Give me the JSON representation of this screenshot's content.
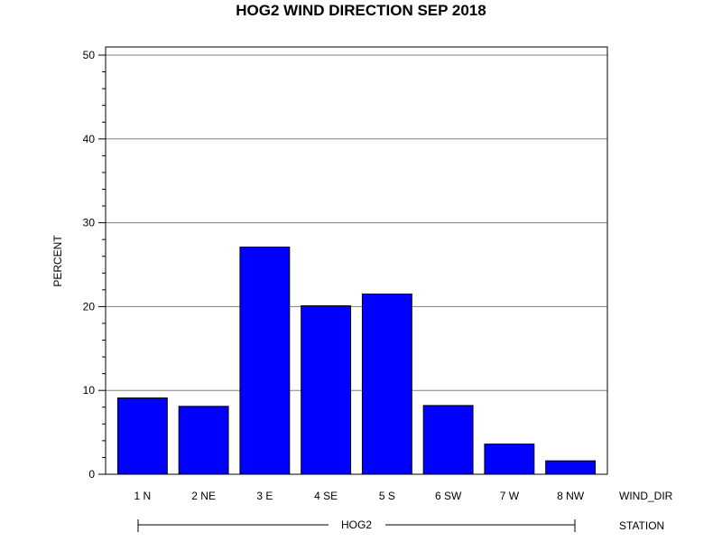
{
  "chart_data": {
    "type": "bar",
    "title": "HOG2 WIND DIRECTION SEP 2018",
    "ylabel": "PERCENT",
    "xlabel": "WIND_DIR",
    "group_label": "STATION",
    "group_value": "HOG2",
    "categories": [
      "1 N",
      "2 NE",
      "3 E",
      "4 SE",
      "5 S",
      "6 SW",
      "7 W",
      "8 NW"
    ],
    "values": [
      9.1,
      8.1,
      27.1,
      20.1,
      21.5,
      8.2,
      3.6,
      1.6
    ],
    "ylim": [
      0,
      50
    ],
    "yticks": [
      0,
      10,
      20,
      30,
      40,
      50
    ],
    "grid": true,
    "bar_color": "#0000FF",
    "bar_edge_color": "#000000"
  }
}
